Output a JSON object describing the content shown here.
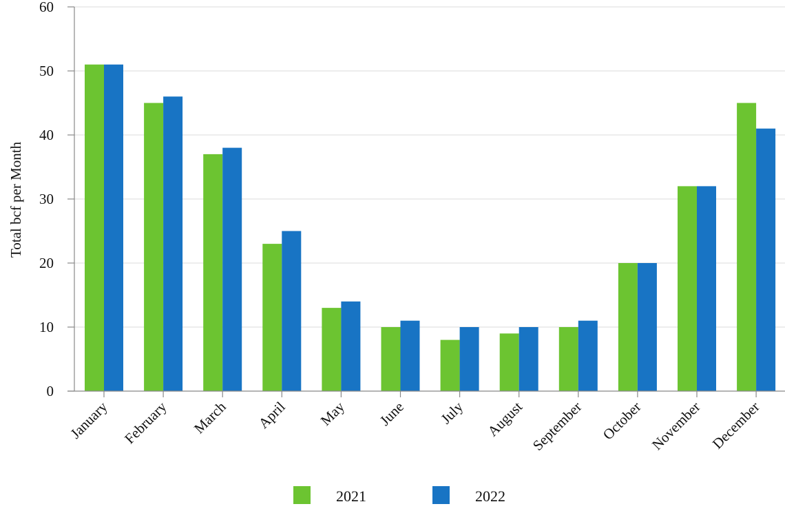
{
  "chart_data": {
    "type": "bar",
    "title": "",
    "xlabel": "",
    "ylabel": "Total bcf per Month",
    "ylim": [
      0,
      60
    ],
    "yticks": [
      0,
      10,
      20,
      30,
      40,
      50,
      60
    ],
    "grid": true,
    "legend_position": "bottom",
    "categories": [
      "January",
      "February",
      "March",
      "April",
      "May",
      "June",
      "July",
      "August",
      "September",
      "October",
      "November",
      "December"
    ],
    "series": [
      {
        "name": "2021",
        "color": "#6cc431",
        "values": [
          51,
          45,
          37,
          23,
          13,
          10,
          8,
          9,
          10,
          20,
          32,
          45
        ]
      },
      {
        "name": "2022",
        "color": "#1874c4",
        "values": [
          51,
          46,
          38,
          25,
          14,
          11,
          10,
          10,
          11,
          20,
          32,
          41
        ]
      }
    ]
  }
}
